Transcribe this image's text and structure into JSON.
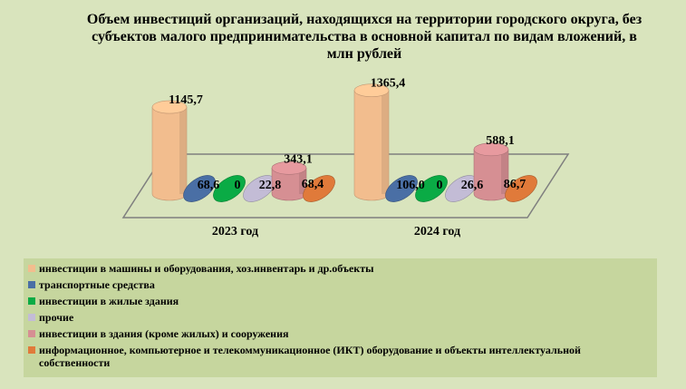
{
  "chart_data": {
    "type": "bar",
    "title": "Объем инвестиций организаций, находящихся на территории городского округа, без субъектов малого предпринимательства  в основной капитал  по видам вложений, в млн рублей",
    "categories": [
      "2023 год",
      "2024 год"
    ],
    "series": [
      {
        "name": "инвестиции в машины и оборудования, хоз.инвентарь и др.объекты",
        "values": [
          1145.7,
          1365.4
        ],
        "labels": [
          "1145,7",
          "1365,4"
        ],
        "color": "#f2bd8e"
      },
      {
        "name": "транспортные средства",
        "values": [
          68.6,
          106.0
        ],
        "labels": [
          "68,6",
          "106,0"
        ],
        "color": "#4a6fa5"
      },
      {
        "name": "инвестиции в жилые здания",
        "values": [
          0,
          0
        ],
        "labels": [
          "0",
          "0"
        ],
        "color": "#0aab45"
      },
      {
        "name": "прочие",
        "values": [
          22.8,
          26.6
        ],
        "labels": [
          "22,8",
          "26,6"
        ],
        "color": "#c3bcd6"
      },
      {
        "name": "инвестиции в здания (кроме жилых) и сооружения",
        "values": [
          343.1,
          588.1
        ],
        "labels": [
          "343,1",
          "588,1"
        ],
        "color": "#d68f93"
      },
      {
        "name": "информационное, компьютерное и телекоммуникационное (ИКТ) оборудование и объекты интеллектуальной собственности",
        "values": [
          68.4,
          86.7
        ],
        "labels": [
          "68,4",
          "86,7"
        ],
        "color": "#e07a3a"
      }
    ],
    "grid": false,
    "legend_position": "bottom"
  }
}
